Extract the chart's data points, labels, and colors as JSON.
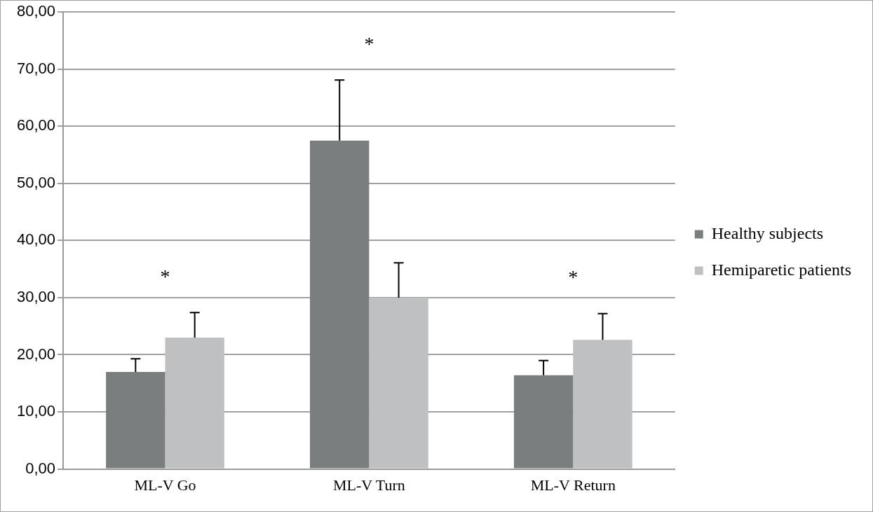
{
  "chart_data": {
    "type": "bar",
    "categories": [
      "ML-V Go",
      "ML-V Turn",
      "ML-V Return"
    ],
    "series": [
      {
        "name": "Healthy subjects",
        "color": "#7b7e7f",
        "values": [
          17.0,
          57.5,
          16.4
        ],
        "errors": [
          [
            17.0,
            19.3
          ],
          [
            57.5,
            68.1
          ],
          [
            16.4,
            19.0
          ]
        ]
      },
      {
        "name": "Hemiparetic patients",
        "color": "#bfc0c1",
        "values": [
          23.0,
          30.0,
          22.6
        ],
        "errors": [
          [
            23.0,
            27.4
          ],
          [
            30.0,
            36.1
          ],
          [
            22.6,
            27.2
          ]
        ]
      }
    ],
    "ylim": [
      0,
      80
    ],
    "yticks": [
      {
        "value": 0,
        "label": "0,00"
      },
      {
        "value": 10,
        "label": "10,00"
      },
      {
        "value": 20,
        "label": "20,00"
      },
      {
        "value": 30,
        "label": "30,00"
      },
      {
        "value": 40,
        "label": "40,00"
      },
      {
        "value": 50,
        "label": "50,00"
      },
      {
        "value": 60,
        "label": "60,00"
      },
      {
        "value": 70,
        "label": "70,00"
      },
      {
        "value": 80,
        "label": "80,00"
      }
    ],
    "grid": "y",
    "legend": "right",
    "annotations": [
      "*",
      "*",
      "*"
    ]
  }
}
